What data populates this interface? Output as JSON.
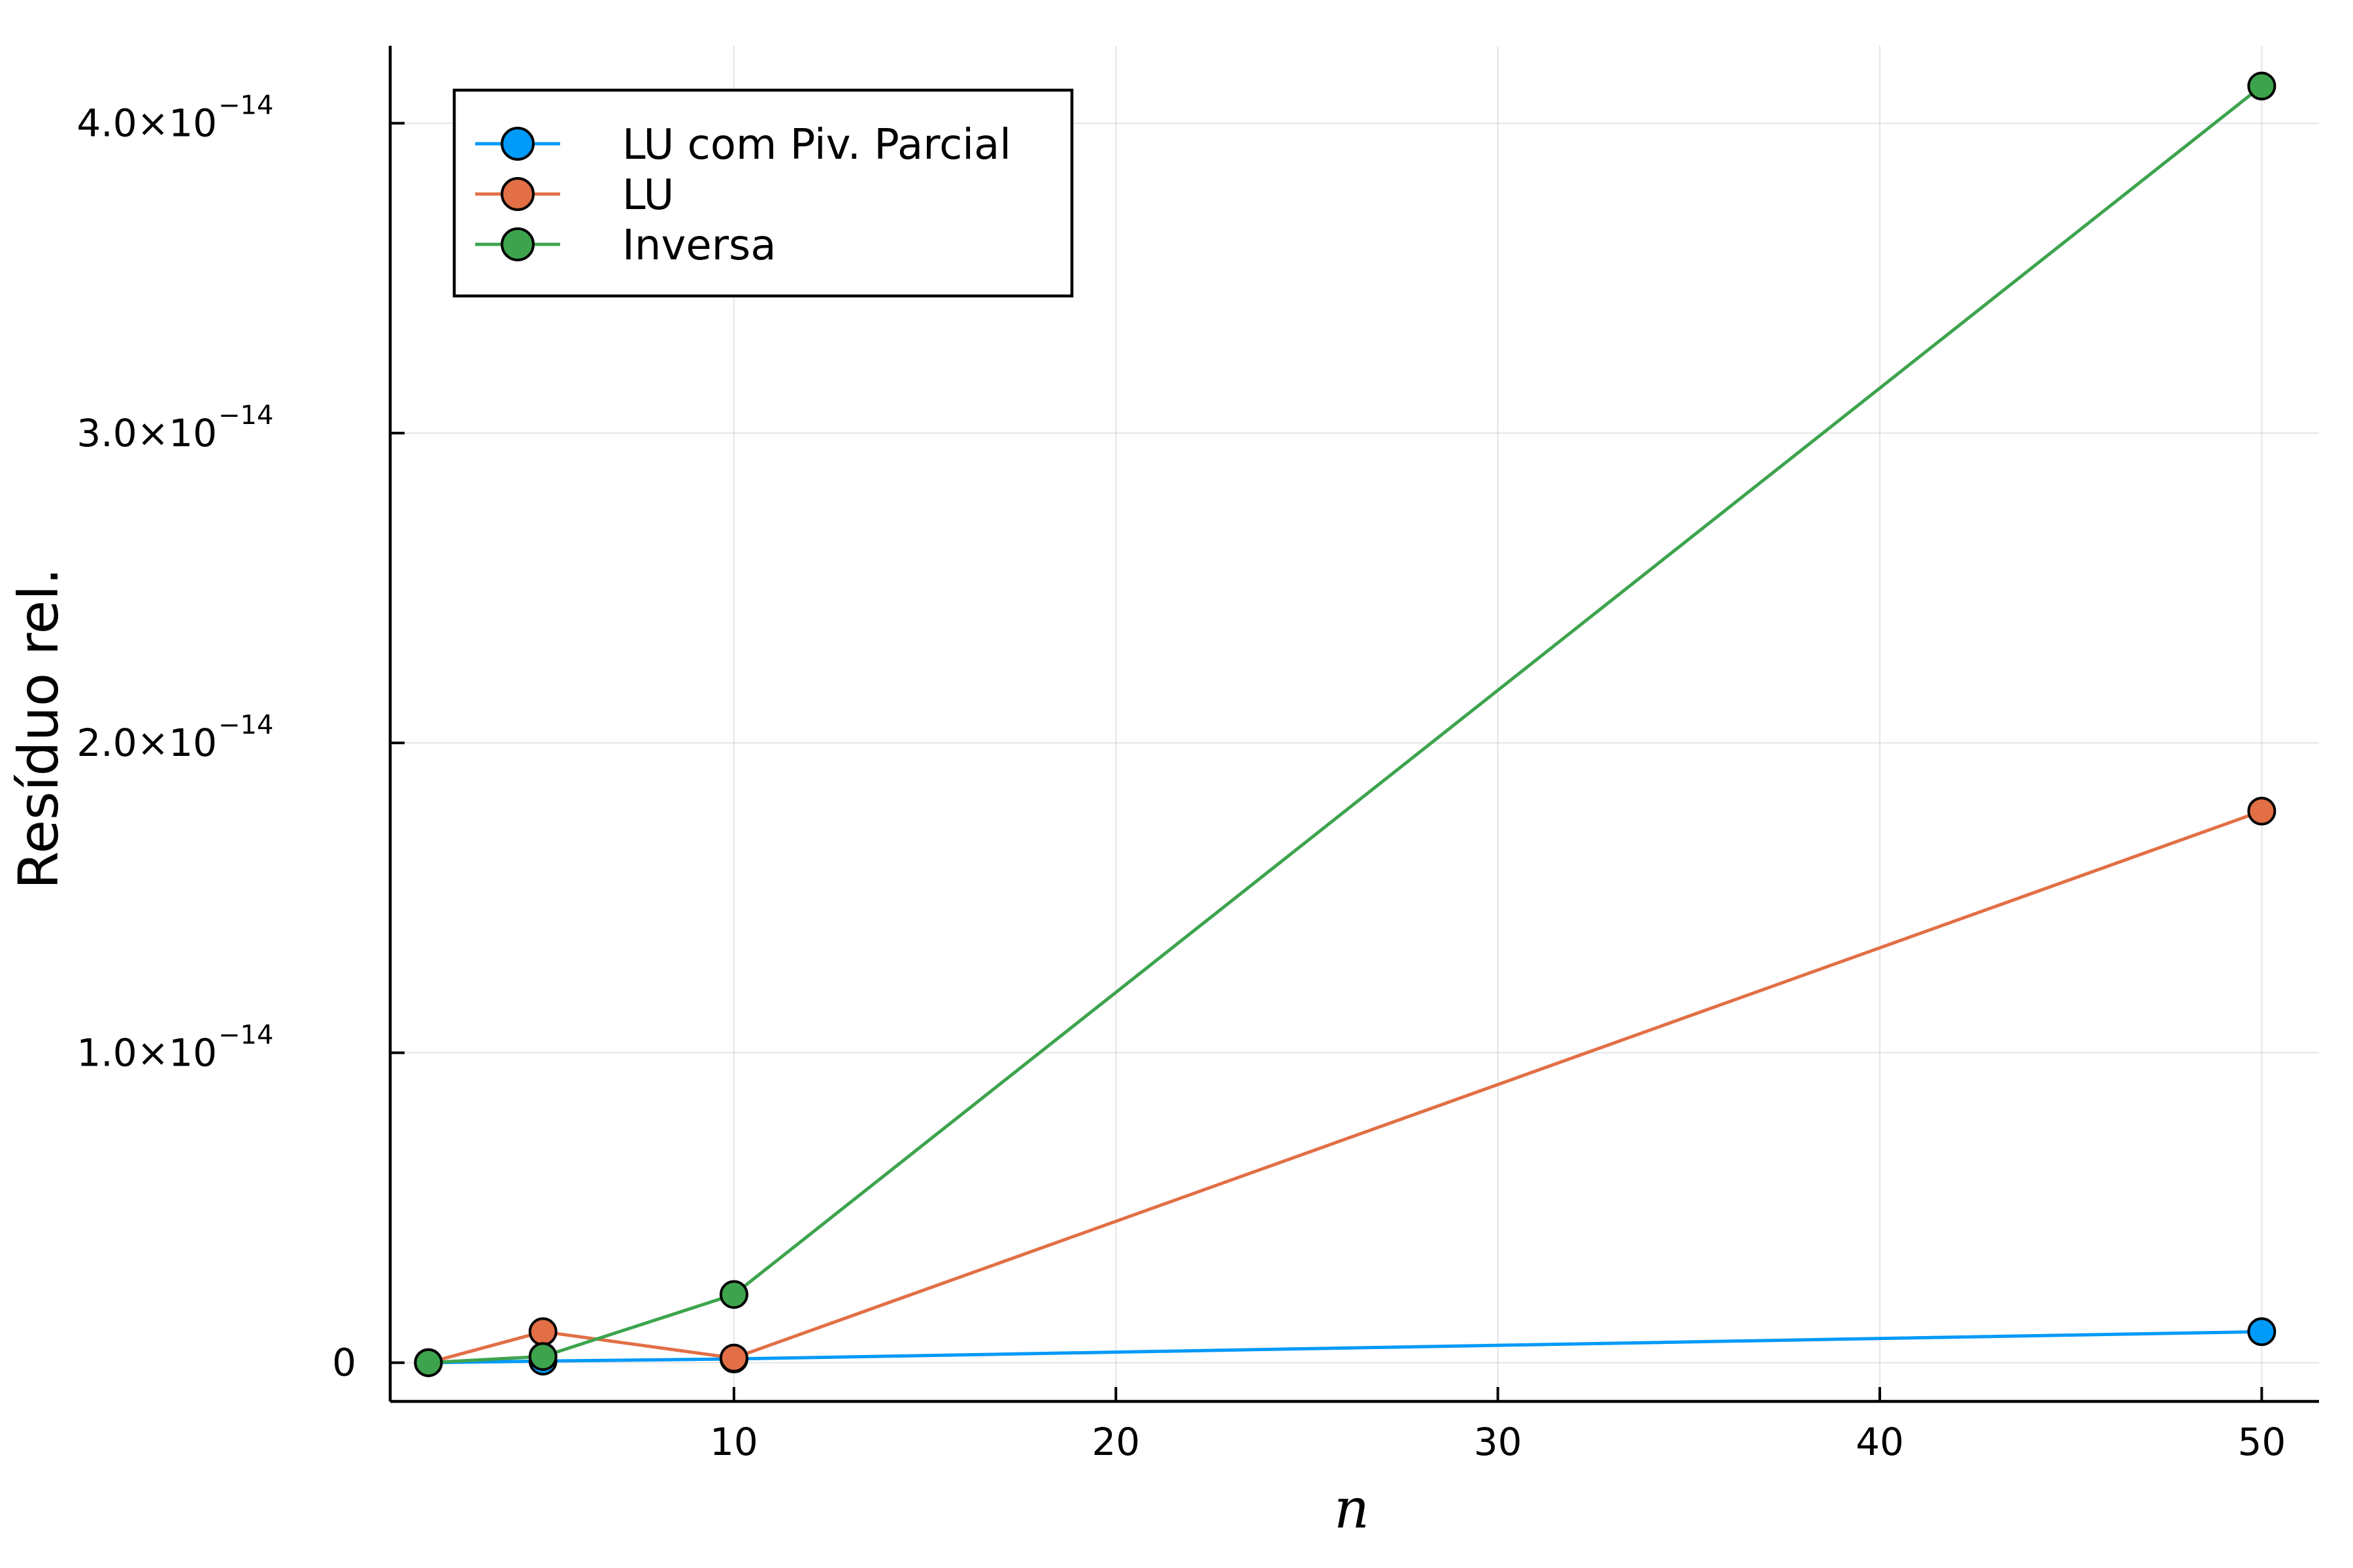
{
  "chart_data": {
    "type": "line",
    "xlabel": "n",
    "ylabel": "Resíduo rel.",
    "xlim": [
      1,
      51.5
    ],
    "ylim": [
      -1.25e-15,
      4.25e-14
    ],
    "x_ticks": [
      10,
      20,
      30,
      40,
      50
    ],
    "x_tick_labels": [
      "10",
      "20",
      "30",
      "40",
      "50"
    ],
    "y_ticks": [
      0,
      1e-14,
      2e-14,
      3e-14,
      4e-14
    ],
    "y_tick_labels": [
      {
        "mantissa": "0",
        "exponent": ""
      },
      {
        "mantissa": "1.0×10",
        "exponent": "−14"
      },
      {
        "mantissa": "2.0×10",
        "exponent": "−14"
      },
      {
        "mantissa": "3.0×10",
        "exponent": "−14"
      },
      {
        "mantissa": "4.0×10",
        "exponent": "−14"
      }
    ],
    "grid": true,
    "legend_position": "top-left",
    "series": [
      {
        "name": "LU com Piv. Parcial",
        "color": "#009af9",
        "x": [
          2,
          5,
          10,
          50
        ],
        "y": [
          0,
          5e-17,
          1.2e-16,
          1e-15
        ]
      },
      {
        "name": "LU",
        "color": "#e26f46",
        "x": [
          2,
          5,
          10,
          50
        ],
        "y": [
          0,
          1e-15,
          1.5e-16,
          1.78e-14
        ]
      },
      {
        "name": "Inversa",
        "color": "#3da44d",
        "x": [
          2,
          5,
          10,
          50
        ],
        "y": [
          0,
          2e-16,
          2.2e-15,
          4.12e-14
        ]
      }
    ]
  }
}
